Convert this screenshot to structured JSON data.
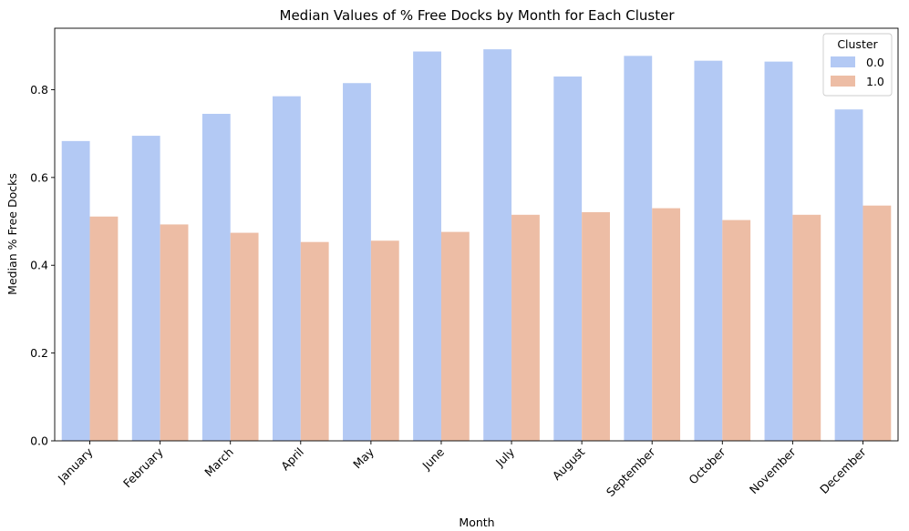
{
  "chart_data": {
    "type": "bar",
    "title": "Median Values of % Free Docks by Month for Each Cluster",
    "xlabel": "Month",
    "ylabel": "Median % Free Docks",
    "categories": [
      "January",
      "February",
      "March",
      "April",
      "May",
      "June",
      "July",
      "August",
      "September",
      "October",
      "November",
      "December"
    ],
    "series": [
      {
        "name": "0.0",
        "color": "#b3c9f4",
        "values": [
          0.683,
          0.695,
          0.745,
          0.785,
          0.815,
          0.887,
          0.892,
          0.83,
          0.877,
          0.866,
          0.864,
          0.755
        ]
      },
      {
        "name": "1.0",
        "color": "#edbda5",
        "values": [
          0.511,
          0.493,
          0.474,
          0.453,
          0.456,
          0.476,
          0.515,
          0.521,
          0.53,
          0.503,
          0.515,
          0.536
        ]
      }
    ],
    "ylim": [
      0,
      0.94
    ],
    "yticks": [
      0.0,
      0.2,
      0.4,
      0.6,
      0.8
    ],
    "ytick_labels": [
      "0.0",
      "0.2",
      "0.4",
      "0.6",
      "0.8"
    ],
    "grid": false,
    "legend": {
      "title": "Cluster",
      "placement": "top-right"
    }
  }
}
